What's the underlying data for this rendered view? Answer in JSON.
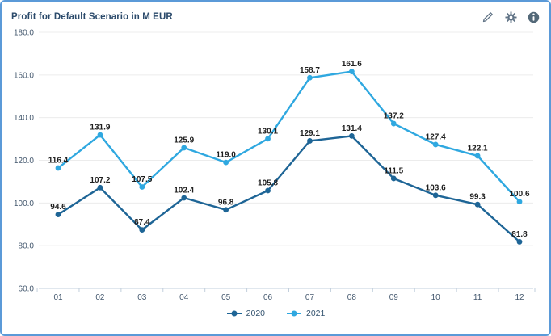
{
  "widget": {
    "title": "Profit for Default Scenario in M EUR",
    "toolbar": {
      "edit_icon": "pencil",
      "settings_icon": "gear",
      "info_icon": "info"
    }
  },
  "chart_data": {
    "type": "line",
    "title": "Profit for Default Scenario in M EUR",
    "categories": [
      "01",
      "02",
      "03",
      "04",
      "05",
      "06",
      "07",
      "08",
      "09",
      "10",
      "11",
      "12"
    ],
    "series": [
      {
        "name": "2020",
        "color": "#1e6596",
        "values": [
          94.6,
          107.2,
          87.4,
          102.4,
          96.8,
          105.8,
          129.1,
          131.4,
          111.5,
          103.6,
          99.3,
          81.8
        ]
      },
      {
        "name": "2021",
        "color": "#2fa8e0",
        "values": [
          116.4,
          131.9,
          107.5,
          125.9,
          119.0,
          130.1,
          158.7,
          161.6,
          137.2,
          127.4,
          122.1,
          100.6
        ]
      }
    ],
    "ylim": [
      60,
      180
    ],
    "ytick_labels": [
      "180.0",
      "160.0",
      "140.0",
      "120.0",
      "100.0",
      "80.0",
      "60.0"
    ],
    "grid": true,
    "legend_position": "bottom-center",
    "data_labels": true
  },
  "colors": {
    "card_border": "#5b9ad8",
    "gridline": "#ececec",
    "axis": "#c2cfdc",
    "axis_label": "#44586e",
    "data_label": "#1f1f1f",
    "title": "#2b4a6b",
    "icon": "#5f7285"
  }
}
